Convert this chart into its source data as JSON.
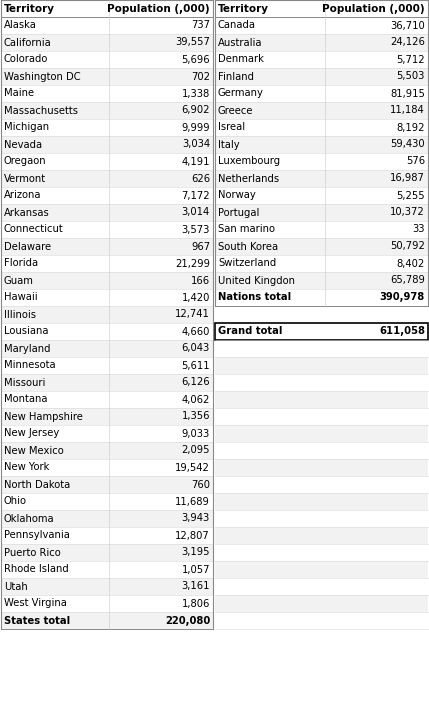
{
  "left_header": [
    "Territory",
    "Population (,000)"
  ],
  "left_rows": [
    [
      "Alaska",
      "737"
    ],
    [
      "California",
      "39,557"
    ],
    [
      "Colorado",
      "5,696"
    ],
    [
      "Washington DC",
      "702"
    ],
    [
      "Maine",
      "1,338"
    ],
    [
      "Massachusetts",
      "6,902"
    ],
    [
      "Michigan",
      "9,999"
    ],
    [
      "Nevada",
      "3,034"
    ],
    [
      "Oregaon",
      "4,191"
    ],
    [
      "Vermont",
      "626"
    ],
    [
      "Arizona",
      "7,172"
    ],
    [
      "Arkansas",
      "3,014"
    ],
    [
      "Connecticut",
      "3,573"
    ],
    [
      "Delaware",
      "967"
    ],
    [
      "Florida",
      "21,299"
    ],
    [
      "Guam",
      "166"
    ],
    [
      "Hawaii",
      "1,420"
    ],
    [
      "Illinois",
      "12,741"
    ],
    [
      "Lousiana",
      "4,660"
    ],
    [
      "Maryland",
      "6,043"
    ],
    [
      "Minnesota",
      "5,611"
    ],
    [
      "Missouri",
      "6,126"
    ],
    [
      "Montana",
      "4,062"
    ],
    [
      "New Hampshire",
      "1,356"
    ],
    [
      "New Jersey",
      "9,033"
    ],
    [
      "New Mexico",
      "2,095"
    ],
    [
      "New York",
      "19,542"
    ],
    [
      "North Dakota",
      "760"
    ],
    [
      "Ohio",
      "11,689"
    ],
    [
      "Oklahoma",
      "3,943"
    ],
    [
      "Pennsylvania",
      "12,807"
    ],
    [
      "Puerto Rico",
      "3,195"
    ],
    [
      "Rhode Island",
      "1,057"
    ],
    [
      "Utah",
      "3,161"
    ],
    [
      "West Virgina",
      "1,806"
    ]
  ],
  "left_total": [
    "States total",
    "220,080"
  ],
  "right_header": [
    "Territory",
    "Population (,000)"
  ],
  "right_rows": [
    [
      "Canada",
      "36,710"
    ],
    [
      "Australia",
      "24,126"
    ],
    [
      "Denmark",
      "5,712"
    ],
    [
      "Finland",
      "5,503"
    ],
    [
      "Germany",
      "81,915"
    ],
    [
      "Greece",
      "11,184"
    ],
    [
      "Isreal",
      "8,192"
    ],
    [
      "Italy",
      "59,430"
    ],
    [
      "Luxembourg",
      "576"
    ],
    [
      "Netherlands",
      "16,987"
    ],
    [
      "Norway",
      "5,255"
    ],
    [
      "Portugal",
      "10,372"
    ],
    [
      "San marino",
      "33"
    ],
    [
      "South Korea",
      "50,792"
    ],
    [
      "Switzerland",
      "8,402"
    ],
    [
      "United Kingdon",
      "65,789"
    ]
  ],
  "right_nations_total": [
    "Nations total",
    "390,978"
  ],
  "right_grand_total": [
    "Grand total",
    "611,058"
  ],
  "bg_color": "#ffffff",
  "text_color": "#000000",
  "alt_row_color": "#f2f2f2",
  "border_color": "#c0c0c0",
  "header_font_size": 7.5,
  "row_font_size": 7.2
}
